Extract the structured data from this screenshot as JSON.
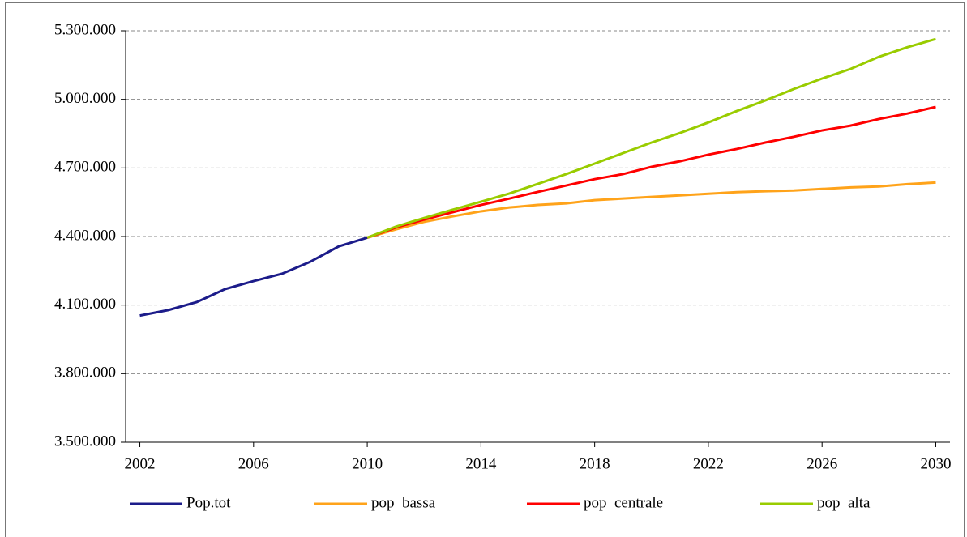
{
  "chart_data": {
    "type": "line",
    "x": [
      2002,
      2003,
      2004,
      2005,
      2006,
      2007,
      2008,
      2009,
      2010,
      2011,
      2012,
      2013,
      2014,
      2015,
      2016,
      2017,
      2018,
      2019,
      2020,
      2021,
      2022,
      2023,
      2024,
      2025,
      2026,
      2027,
      2028,
      2029,
      2030
    ],
    "xlim": [
      2001.5,
      2030.5
    ],
    "xticks": [
      2002,
      2006,
      2010,
      2014,
      2018,
      2022,
      2026,
      2030
    ],
    "ylim": [
      3500000,
      5300000
    ],
    "yticks": [
      {
        "value": 3500000,
        "label": "3.500.000"
      },
      {
        "value": 3800000,
        "label": "3.800.000"
      },
      {
        "value": 4100000,
        "label": "4.100.000"
      },
      {
        "value": 4400000,
        "label": "4.400.000"
      },
      {
        "value": 4700000,
        "label": "4.700.000"
      },
      {
        "value": 5000000,
        "label": "5.000.000"
      },
      {
        "value": 5300000,
        "label": "5.300.000"
      }
    ],
    "grid": true,
    "legend": "bottom",
    "series": [
      {
        "name": "Pop.tot",
        "color": "#1c1c8a",
        "values": [
          4054000,
          4078000,
          4113000,
          4170000,
          4205000,
          4237000,
          4290000,
          4357000,
          4395000,
          null,
          null,
          null,
          null,
          null,
          null,
          null,
          null,
          null,
          null,
          null,
          null,
          null,
          null,
          null,
          null,
          null,
          null,
          null,
          null
        ]
      },
      {
        "name": "pop_bassa",
        "color": "#ffa31a",
        "values": [
          null,
          null,
          null,
          null,
          null,
          null,
          null,
          null,
          4395000,
          4431000,
          4464000,
          4488000,
          4510000,
          4527000,
          4538000,
          4545000,
          4559000,
          4566000,
          4573000,
          4580000,
          4587000,
          4594000,
          4598000,
          4601000,
          4608000,
          4615000,
          4619000,
          4629000,
          4636000
        ]
      },
      {
        "name": "pop_centrale",
        "color": "#ff0000",
        "values": [
          null,
          null,
          null,
          null,
          null,
          null,
          null,
          null,
          4395000,
          4439000,
          4474000,
          4506000,
          4538000,
          4566000,
          4595000,
          4623000,
          4651000,
          4673000,
          4705000,
          4729000,
          4758000,
          4783000,
          4811000,
          4836000,
          4864000,
          4885000,
          4914000,
          4938000,
          4967000
        ]
      },
      {
        "name": "pop_alta",
        "color": "#99cc00",
        "values": [
          null,
          null,
          null,
          null,
          null,
          null,
          null,
          null,
          4395000,
          4443000,
          4481000,
          4517000,
          4552000,
          4588000,
          4630000,
          4673000,
          4719000,
          4765000,
          4811000,
          4853000,
          4899000,
          4949000,
          4995000,
          5045000,
          5091000,
          5133000,
          5186000,
          5228000,
          5264000
        ]
      }
    ]
  }
}
